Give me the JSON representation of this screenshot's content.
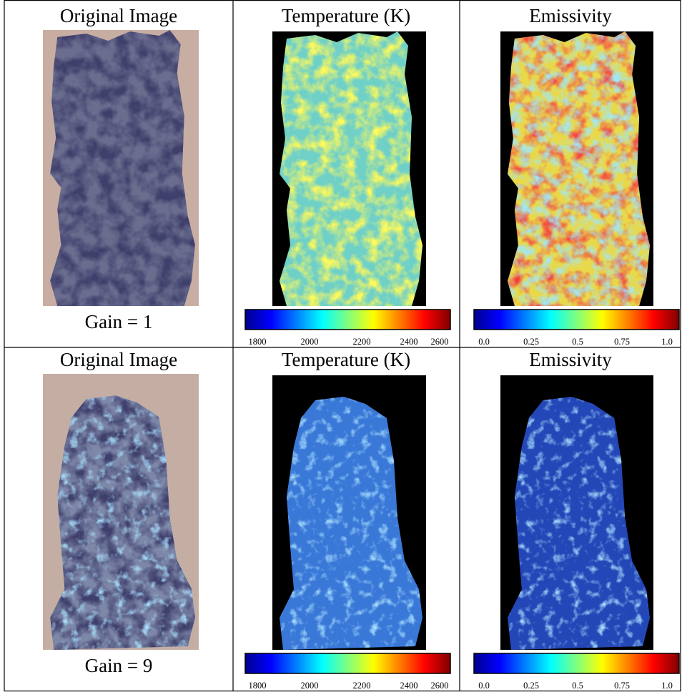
{
  "rows": [
    {
      "cells": [
        {
          "title": "Original Image",
          "caption": "Gain = 1"
        },
        {
          "title": "Temperature (K)",
          "colorbar_ticks": [
            "1800",
            "2000",
            "2200",
            "2400",
            "2600"
          ]
        },
        {
          "title": "Emissivity",
          "colorbar_ticks": [
            "0.0",
            "0.25",
            "0.5",
            "0.75",
            "1.0"
          ]
        }
      ]
    },
    {
      "cells": [
        {
          "title": "Original Image",
          "caption": "Gain = 9"
        },
        {
          "title": "Temperature (K)",
          "colorbar_ticks": [
            "1800",
            "2000",
            "2200",
            "2400",
            "2600"
          ]
        },
        {
          "title": "Emissivity",
          "colorbar_ticks": [
            "0.0",
            "0.25",
            "0.5",
            "0.75",
            "1.0"
          ]
        }
      ]
    }
  ]
}
